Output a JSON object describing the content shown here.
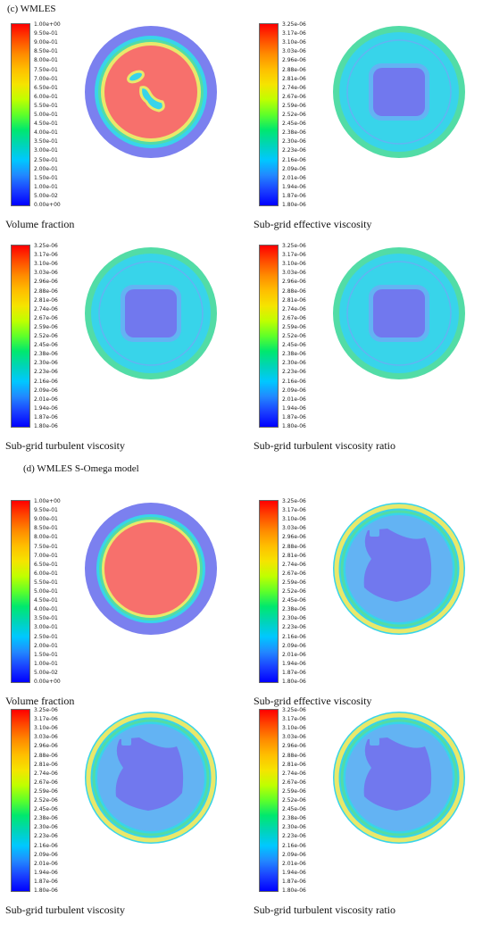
{
  "sections": [
    {
      "title": "(c) WMLES",
      "panels": [
        {
          "caption": "Volume fraction",
          "scale": "vf",
          "field": "vf_c"
        },
        {
          "caption": "Sub-grid effective viscosity",
          "scale": "visc",
          "field": "visc_c"
        },
        {
          "caption": "Sub-grid turbulent viscosity",
          "scale": "visc",
          "field": "visc_c"
        },
        {
          "caption": "Sub-grid turbulent viscosity ratio",
          "scale": "visc",
          "field": "visc_c"
        }
      ]
    },
    {
      "title": "(d) WMLES S-Omega model",
      "panels": [
        {
          "caption": "Volume fraction",
          "scale": "vf",
          "field": "vf_d"
        },
        {
          "caption": "Sub-grid effective viscosity",
          "scale": "visc",
          "field": "visc_d"
        },
        {
          "caption": "Sub-grid turbulent viscosity",
          "scale": "visc",
          "field": "visc_d"
        },
        {
          "caption": "Sub-grid turbulent viscosity ratio",
          "scale": "visc",
          "field": "visc_d"
        }
      ]
    }
  ],
  "scales": {
    "vf": [
      "1.00e+00",
      "9.50e-01",
      "9.00e-01",
      "8.50e-01",
      "8.00e-01",
      "7.50e-01",
      "7.00e-01",
      "6.50e-01",
      "6.00e-01",
      "5.50e-01",
      "5.00e-01",
      "4.50e-01",
      "4.00e-01",
      "3.50e-01",
      "3.00e-01",
      "2.50e-01",
      "2.00e-01",
      "1.50e-01",
      "1.00e-01",
      "5.00e-02",
      "0.00e+00"
    ],
    "visc": [
      "3.25e-06",
      "3.17e-06",
      "3.10e-06",
      "3.03e-06",
      "2.96e-06",
      "2.88e-06",
      "2.81e-06",
      "2.74e-06",
      "2.67e-06",
      "2.59e-06",
      "2.52e-06",
      "2.45e-06",
      "2.38e-06",
      "2.30e-06",
      "2.23e-06",
      "2.16e-06",
      "2.09e-06",
      "2.01e-06",
      "1.94e-06",
      "1.87e-06",
      "1.80e-06"
    ]
  },
  "colors": {
    "colormap": [
      "#ff0000",
      "#ff4a00",
      "#ff8c00",
      "#ffbf00",
      "#f5e400",
      "#bfff00",
      "#5eff2a",
      "#00e86e",
      "#00d4b8",
      "#00c8ff",
      "#2288ff",
      "#1a40ff",
      "#0000ff"
    ],
    "outer_ring": "#7b80ef",
    "core_red": "#f7706c",
    "low_blue": "#7178ee",
    "cyan": "#38d4ea",
    "green": "#52dca6",
    "yellow": "#e9e86a",
    "light_blue": "#63b3f3"
  }
}
